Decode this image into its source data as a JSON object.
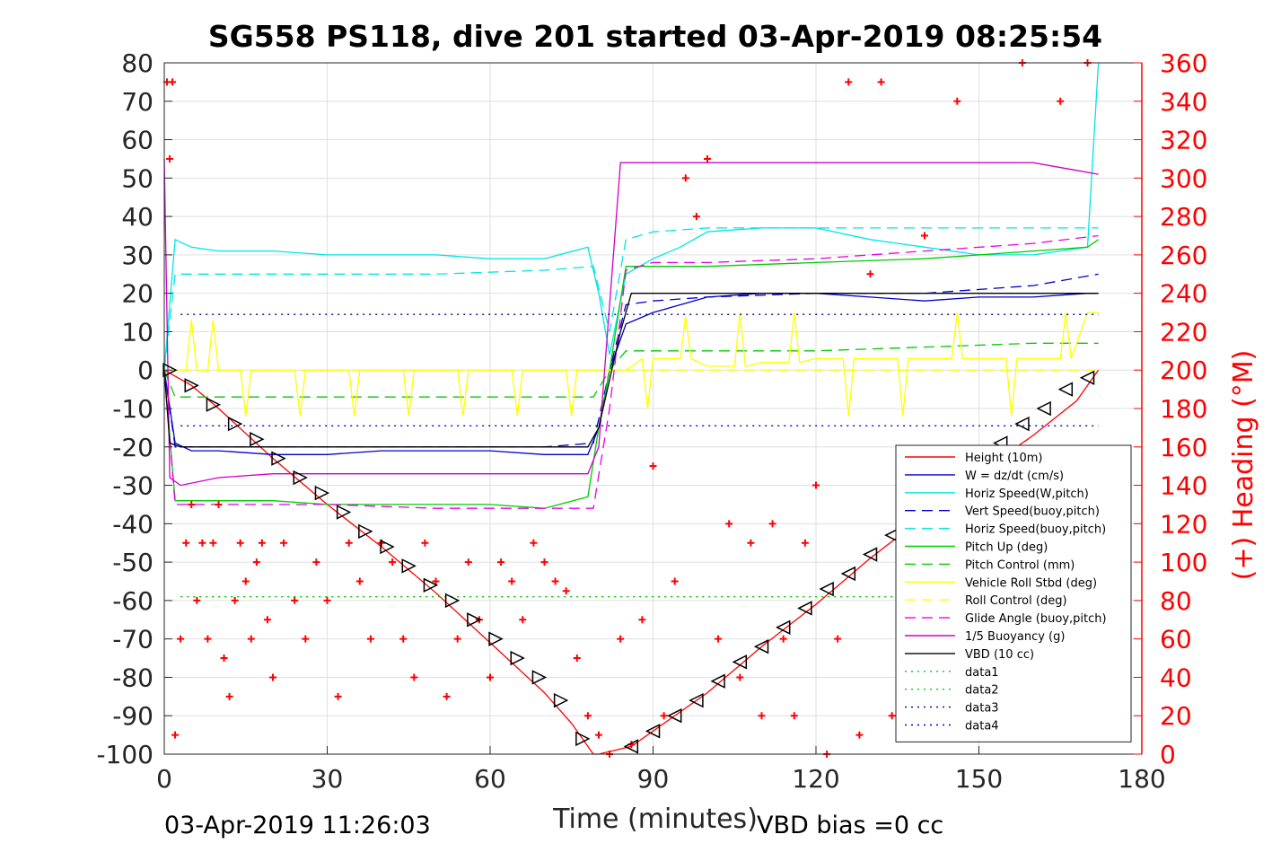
{
  "chart_data": {
    "type": "line",
    "title": "SG558 PS118, dive 201 started 03-Apr-2019 08:25:54",
    "xlabel": "Time (minutes)",
    "ylabel": "",
    "y2label": "(+) Heading (°M)",
    "xlim": [
      0,
      180
    ],
    "ylim": [
      -100,
      80
    ],
    "y2lim": [
      0,
      360
    ],
    "xticks": [
      0,
      30,
      60,
      90,
      120,
      150,
      180
    ],
    "yticks": [
      -100,
      -90,
      -80,
      -70,
      -60,
      -50,
      -40,
      -30,
      -20,
      -10,
      0,
      10,
      20,
      30,
      40,
      50,
      60,
      70,
      80
    ],
    "y2ticks": [
      0,
      20,
      40,
      60,
      80,
      100,
      120,
      140,
      160,
      180,
      200,
      220,
      240,
      260,
      280,
      300,
      320,
      340,
      360
    ],
    "grid": true,
    "legend_position": "lower-right",
    "footer_left": "03-Apr-2019 11:26:03",
    "footer_right": "VBD bias =0 cc",
    "legend": [
      {
        "name": "Height (10m)",
        "color": "#ff0000",
        "dash": "solid"
      },
      {
        "name": "W = dz/dt (cm/s)",
        "color": "#0000cc",
        "dash": "solid"
      },
      {
        "name": "Horiz Speed(W,pitch)",
        "color": "#00e5e5",
        "dash": "solid"
      },
      {
        "name": "Vert Speed(buoy,pitch)",
        "color": "#0000cc",
        "dash": "dashed"
      },
      {
        "name": "Horiz Speed(buoy,pitch)",
        "color": "#00e5e5",
        "dash": "dashed"
      },
      {
        "name": "Pitch Up (deg)",
        "color": "#00cc00",
        "dash": "solid"
      },
      {
        "name": "Pitch Control (mm)",
        "color": "#00cc00",
        "dash": "dashed"
      },
      {
        "name": "Vehicle Roll Stbd (deg)",
        "color": "#ffff00",
        "dash": "solid"
      },
      {
        "name": "Roll Control (deg)",
        "color": "#ffff00",
        "dash": "dashed"
      },
      {
        "name": "Glide Angle (buoy,pitch)",
        "color": "#e600e6",
        "dash": "dashed"
      },
      {
        "name": "1/5 Buoyancy (g)",
        "color": "#cc00cc",
        "dash": "solid"
      },
      {
        "name": "VBD (10 cc)",
        "color": "#000000",
        "dash": "solid"
      },
      {
        "name": "data1",
        "color": "#00cc00",
        "dash": "dotted"
      },
      {
        "name": "data2",
        "color": "#00cc00",
        "dash": "dotted"
      },
      {
        "name": "data3",
        "color": "#000080",
        "dash": "dotted"
      },
      {
        "name": "data4",
        "color": "#0000cc",
        "dash": "dotted"
      }
    ],
    "series": [
      {
        "name": "Height (10m)",
        "color": "#ff0000",
        "dash": "solid",
        "x": [
          0,
          5,
          10,
          20,
          30,
          40,
          50,
          60,
          70,
          75,
          79,
          80,
          86,
          90,
          100,
          110,
          120,
          130,
          140,
          150,
          160,
          168,
          172
        ],
        "y": [
          0,
          -4,
          -10,
          -23,
          -35,
          -46,
          -58,
          -71,
          -84,
          -92,
          -100,
          -100,
          -98,
          -94,
          -84,
          -72,
          -61,
          -49,
          -38,
          -27,
          -17,
          -8,
          0
        ]
      },
      {
        "name": "W = dz/dt (cm/s)",
        "color": "#0000cc",
        "dash": "solid",
        "x": [
          0,
          2,
          5,
          10,
          20,
          30,
          40,
          50,
          60,
          70,
          78,
          80,
          82,
          85,
          90,
          95,
          100,
          110,
          120,
          130,
          140,
          150,
          160,
          170,
          172
        ],
        "y": [
          0,
          -19,
          -21,
          -21,
          -22,
          -22,
          -21,
          -21,
          -21,
          -22,
          -22,
          -15,
          0,
          12,
          15,
          17,
          19,
          20,
          20,
          19,
          18,
          19,
          19,
          20,
          20
        ]
      },
      {
        "name": "Horiz Speed(W,pitch)",
        "color": "#00e5e5",
        "dash": "solid",
        "x": [
          0,
          2,
          5,
          10,
          20,
          30,
          40,
          50,
          60,
          70,
          78,
          80,
          82,
          85,
          90,
          95,
          100,
          110,
          120,
          130,
          140,
          150,
          160,
          170,
          172
        ],
        "y": [
          0,
          34,
          32,
          31,
          31,
          30,
          30,
          30,
          29,
          29,
          32,
          20,
          4,
          25,
          29,
          32,
          36,
          37,
          37,
          34,
          32,
          30,
          30,
          32,
          80
        ]
      },
      {
        "name": "Vert Speed(buoy,pitch)",
        "color": "#0000cc",
        "dash": "dashed",
        "x": [
          0,
          2,
          10,
          30,
          50,
          70,
          79,
          82,
          85,
          90,
          100,
          120,
          140,
          160,
          172
        ],
        "y": [
          0,
          -20,
          -20,
          -20,
          -20,
          -20,
          -19,
          0,
          17,
          18,
          19,
          20,
          20,
          22,
          25
        ]
      },
      {
        "name": "Horiz Speed(buoy,pitch)",
        "color": "#00e5e5",
        "dash": "dashed",
        "x": [
          0,
          2,
          10,
          30,
          50,
          70,
          79,
          82,
          85,
          90,
          100,
          120,
          140,
          160,
          172
        ],
        "y": [
          0,
          25,
          25,
          25,
          25,
          26,
          27,
          10,
          34,
          36,
          37,
          37,
          37,
          37,
          37
        ]
      },
      {
        "name": "Pitch Up (deg)",
        "color": "#00cc00",
        "dash": "solid",
        "x": [
          0,
          2,
          10,
          20,
          30,
          40,
          50,
          60,
          70,
          78,
          80,
          82,
          85,
          90,
          100,
          120,
          140,
          160,
          170,
          172
        ],
        "y": [
          0,
          -34,
          -34,
          -34,
          -35,
          -35,
          -35,
          -35,
          -36,
          -33,
          -15,
          0,
          27,
          27,
          27,
          28,
          29,
          31,
          32,
          34
        ]
      },
      {
        "name": "Pitch Control (mm)",
        "color": "#00cc00",
        "dash": "dashed",
        "x": [
          0,
          2,
          10,
          30,
          50,
          70,
          79,
          82,
          85,
          100,
          120,
          140,
          160,
          172
        ],
        "y": [
          0,
          -7,
          -7,
          -7,
          -7,
          -7,
          -7,
          0,
          5,
          5,
          5,
          6,
          7,
          7
        ]
      },
      {
        "name": "Vehicle Roll Stbd (deg)",
        "color": "#ffff00",
        "dash": "solid",
        "x": [
          0,
          4,
          5,
          6,
          8,
          9,
          10,
          14,
          15,
          16,
          20,
          24,
          25,
          26,
          30,
          34,
          35,
          36,
          40,
          44,
          45,
          46,
          50,
          54,
          55,
          56,
          60,
          64,
          65,
          66,
          70,
          74,
          75,
          76,
          80,
          85,
          88,
          89,
          90,
          95,
          96,
          97,
          100,
          105,
          106,
          107,
          110,
          115,
          116,
          117,
          120,
          125,
          126,
          127,
          130,
          135,
          136,
          137,
          140,
          145,
          146,
          147,
          150,
          155,
          156,
          157,
          160,
          165,
          166,
          167,
          170,
          172
        ],
        "y": [
          0,
          0,
          13,
          0,
          0,
          13,
          0,
          0,
          -12,
          0,
          0,
          0,
          -12,
          0,
          0,
          0,
          -12,
          0,
          0,
          0,
          -12,
          0,
          0,
          0,
          -12,
          0,
          0,
          0,
          -12,
          0,
          0,
          0,
          -12,
          0,
          0,
          0,
          3,
          -10,
          3,
          3,
          14,
          3,
          1,
          1,
          15,
          1,
          2,
          2,
          15,
          2,
          3,
          3,
          -12,
          3,
          3,
          3,
          -12,
          3,
          3,
          3,
          15,
          3,
          3,
          3,
          -12,
          3,
          3,
          3,
          15,
          3,
          15,
          15
        ]
      },
      {
        "name": "Roll Control (deg)",
        "color": "#ffff00",
        "dash": "dashed",
        "x": [
          0,
          10,
          50,
          80,
          120,
          172
        ],
        "y": [
          0,
          0,
          0,
          0,
          0,
          0
        ]
      },
      {
        "name": "Glide Angle (buoy,pitch)",
        "color": "#e600e6",
        "dash": "dashed",
        "x": [
          0,
          2,
          10,
          30,
          50,
          70,
          79,
          82,
          85,
          90,
          100,
          120,
          140,
          160,
          172
        ],
        "y": [
          0,
          -35,
          -35,
          -35,
          -36,
          -36,
          -36,
          -10,
          26,
          28,
          28,
          29,
          31,
          33,
          35
        ]
      },
      {
        "name": "1/5 Buoyancy (g)",
        "color": "#cc00cc",
        "dash": "solid",
        "x": [
          0,
          1,
          3,
          10,
          20,
          40,
          60,
          78,
          80,
          84,
          85,
          90,
          100,
          120,
          140,
          160,
          168,
          172
        ],
        "y": [
          55,
          -28,
          -30,
          -28,
          -27,
          -27,
          -27,
          -27,
          -20,
          54,
          54,
          54,
          54,
          54,
          54,
          54,
          52,
          51
        ]
      },
      {
        "name": "VBD (10 cc)",
        "color": "#000000",
        "dash": "solid",
        "x": [
          0,
          1,
          3,
          30,
          60,
          78,
          80,
          84,
          86,
          100,
          150,
          172
        ],
        "y": [
          0,
          -19,
          -20,
          -20,
          -20,
          -20,
          -15,
          10,
          20,
          20,
          20,
          20
        ]
      },
      {
        "name": "data1",
        "color": "#00cc00",
        "dash": "dotted",
        "x": [
          3,
          172
        ],
        "y": [
          -59,
          -59
        ]
      },
      {
        "name": "data2",
        "color": "#00cc00",
        "dash": "dotted",
        "x": [
          3,
          172
        ],
        "y": [
          -59,
          -59
        ]
      },
      {
        "name": "data3",
        "color": "#000080",
        "dash": "dotted",
        "x": [
          3,
          172
        ],
        "y": [
          14.5,
          14.5
        ]
      },
      {
        "name": "data4",
        "color": "#0000cc",
        "dash": "dotted",
        "x": [
          3,
          172
        ],
        "y": [
          -14.5,
          -14.5
        ]
      }
    ],
    "heading_points": {
      "color": "#ff0000",
      "marker": "+",
      "x": [
        0.5,
        1,
        1.5,
        2,
        3,
        4,
        5,
        6,
        7,
        8,
        9,
        10,
        11,
        12,
        13,
        14,
        15,
        16,
        17,
        18,
        19,
        20,
        22,
        24,
        26,
        28,
        30,
        32,
        34,
        36,
        38,
        40,
        42,
        44,
        46,
        48,
        50,
        52,
        54,
        56,
        58,
        60,
        62,
        64,
        66,
        68,
        70,
        72,
        74,
        76,
        78,
        80,
        82,
        84,
        86,
        88,
        90,
        92,
        94,
        96,
        98,
        100,
        102,
        104,
        106,
        108,
        110,
        112,
        114,
        116,
        118,
        120,
        122,
        124,
        126,
        128,
        130,
        132,
        134,
        136,
        138,
        140,
        142,
        144,
        146,
        148,
        150,
        155,
        158,
        160,
        165,
        168,
        170
      ],
      "y": [
        350,
        310,
        350,
        10,
        60,
        110,
        130,
        80,
        110,
        60,
        110,
        130,
        50,
        30,
        80,
        110,
        90,
        60,
        100,
        110,
        70,
        40,
        110,
        80,
        60,
        100,
        80,
        30,
        110,
        90,
        60,
        110,
        100,
        60,
        40,
        110,
        90,
        30,
        60,
        100,
        70,
        40,
        100,
        90,
        70,
        110,
        100,
        90,
        85,
        50,
        20,
        10,
        0,
        60,
        5,
        70,
        150,
        20,
        90,
        300,
        280,
        310,
        60,
        120,
        40,
        110,
        20,
        120,
        60,
        20,
        110,
        140,
        0,
        60,
        350,
        10,
        250,
        350,
        20,
        110,
        30,
        270,
        90,
        20,
        340,
        70,
        30,
        100,
        360,
        10,
        340,
        60,
        360
      ]
    },
    "descent_triangles": {
      "color": "#000000",
      "x": [
        1,
        5,
        9,
        13,
        17,
        21,
        25,
        29,
        33,
        37,
        41,
        45,
        49,
        53,
        57,
        61,
        65,
        69,
        73,
        77
      ],
      "y": [
        0,
        -4,
        -9,
        -14,
        -18,
        -23,
        -28,
        -32,
        -37,
        -42,
        -46,
        -51,
        -56,
        -60,
        -65,
        -70,
        -75,
        -80,
        -86,
        -96
      ]
    },
    "ascent_triangles": {
      "color": "#000000",
      "x": [
        86,
        90,
        94,
        98,
        102,
        106,
        110,
        114,
        118,
        122,
        126,
        130,
        134,
        138,
        142,
        146,
        150,
        154,
        158,
        162,
        166,
        170
      ],
      "y": [
        -98,
        -94,
        -90,
        -86,
        -81,
        -76,
        -72,
        -67,
        -62,
        -57,
        -53,
        -48,
        -43,
        -38,
        -33,
        -28,
        -24,
        -19,
        -14,
        -10,
        -5,
        -2
      ]
    }
  }
}
